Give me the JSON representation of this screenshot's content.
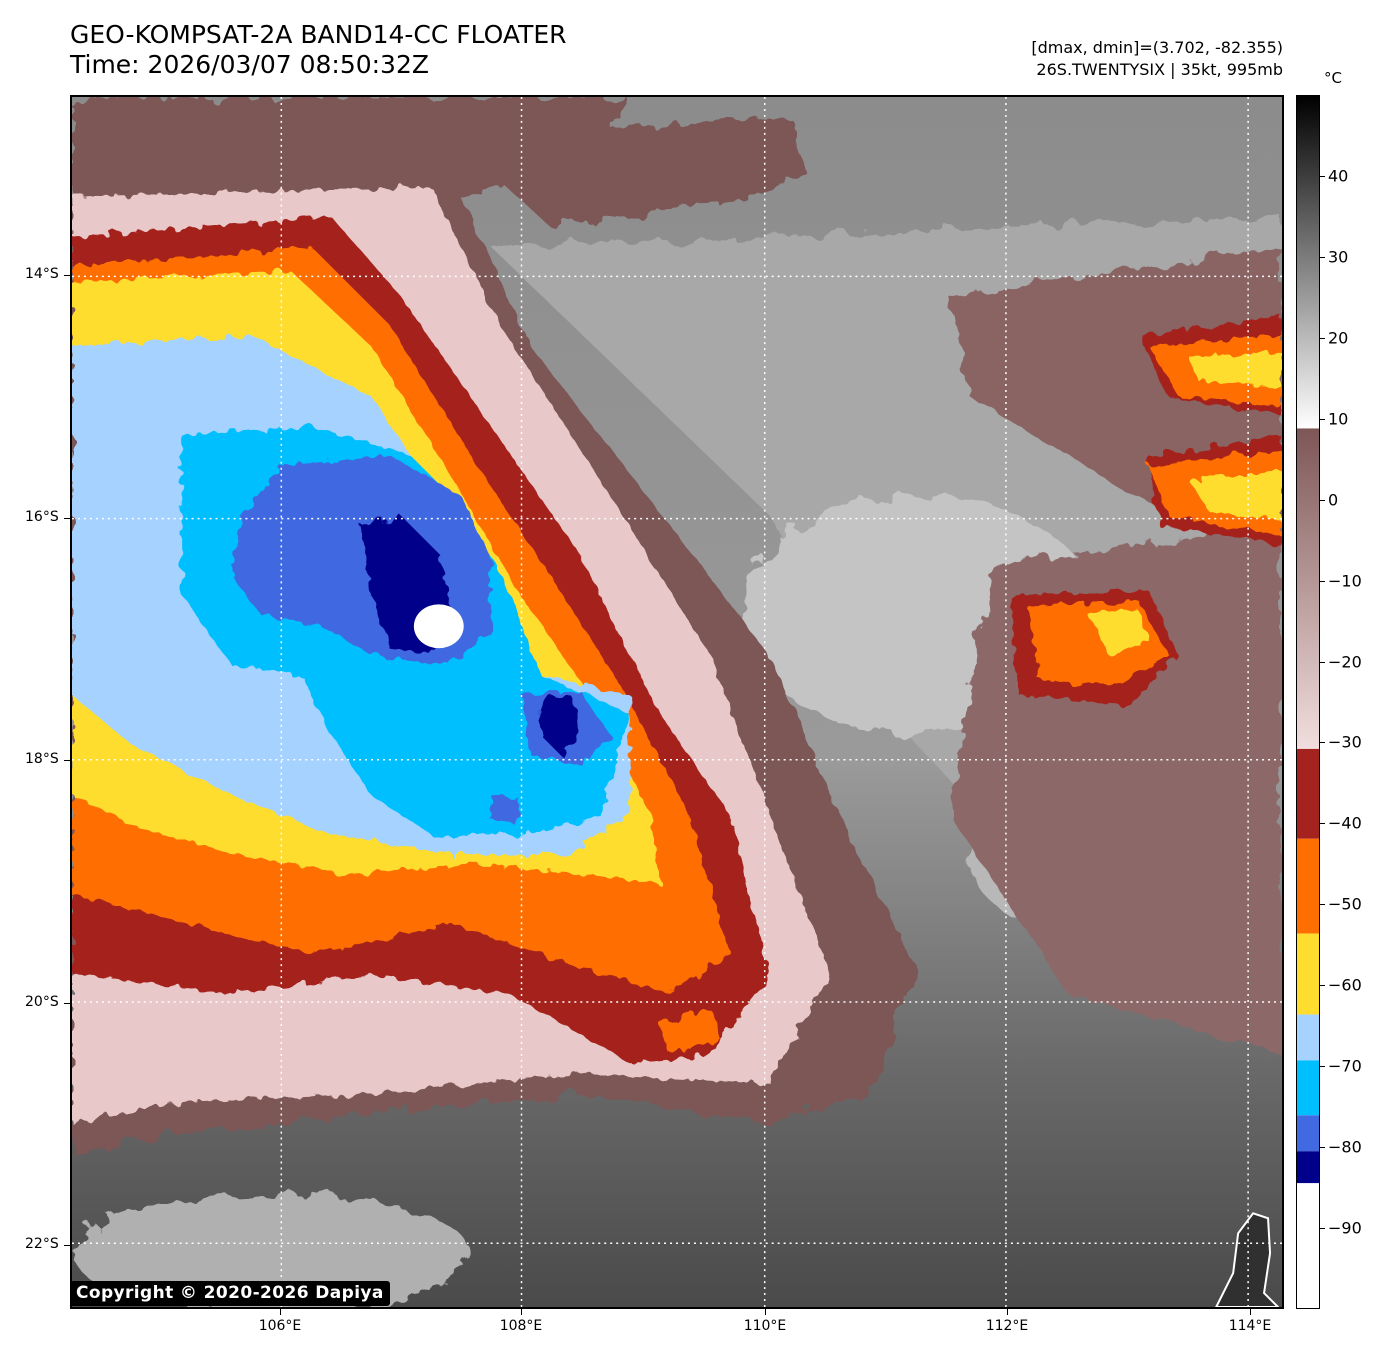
{
  "header": {
    "title": "GEO-KOMPSAT-2A BAND14-CC FLOATER",
    "time": "Time: 2026/03/07 08:50:32Z",
    "range": "[dmax, dmin]=(3.702, -82.355)",
    "storm": "26S.TWENTYSIX | 35kt, 995mb"
  },
  "map": {
    "lat_labels": [
      "14°S",
      "16°S",
      "18°S",
      "20°S",
      "22°S"
    ],
    "lon_labels": [
      "106°E",
      "108°E",
      "110°E",
      "112°E",
      "114°E"
    ],
    "copyright": "Copyright © 2020-2026 Dapiya"
  },
  "colorbar": {
    "unit": "°C",
    "tick_labels": [
      "40",
      "30",
      "20",
      "10",
      "0",
      "−10",
      "−20",
      "−30",
      "−40",
      "−50",
      "−60",
      "−70",
      "−80",
      "−90"
    ],
    "tick_values": [
      40,
      30,
      20,
      10,
      0,
      -10,
      -20,
      -30,
      -40,
      -50,
      -60,
      -70,
      -80,
      -90
    ],
    "range": [
      -100,
      50
    ],
    "colors": {
      "eye_white": "#ffffff",
      "navy": "#00008b",
      "royal_blue": "#4169e1",
      "deep_sky_blue": "#00bfff",
      "light_sky_blue": "#a6d2ff",
      "yellow": "#fedd2f",
      "orange": "#ff6e00",
      "dark_red": "#a5231f",
      "pink": "#f2d4d4",
      "brown": "#7d5656",
      "gray": "#808080",
      "black": "#000000"
    }
  }
}
